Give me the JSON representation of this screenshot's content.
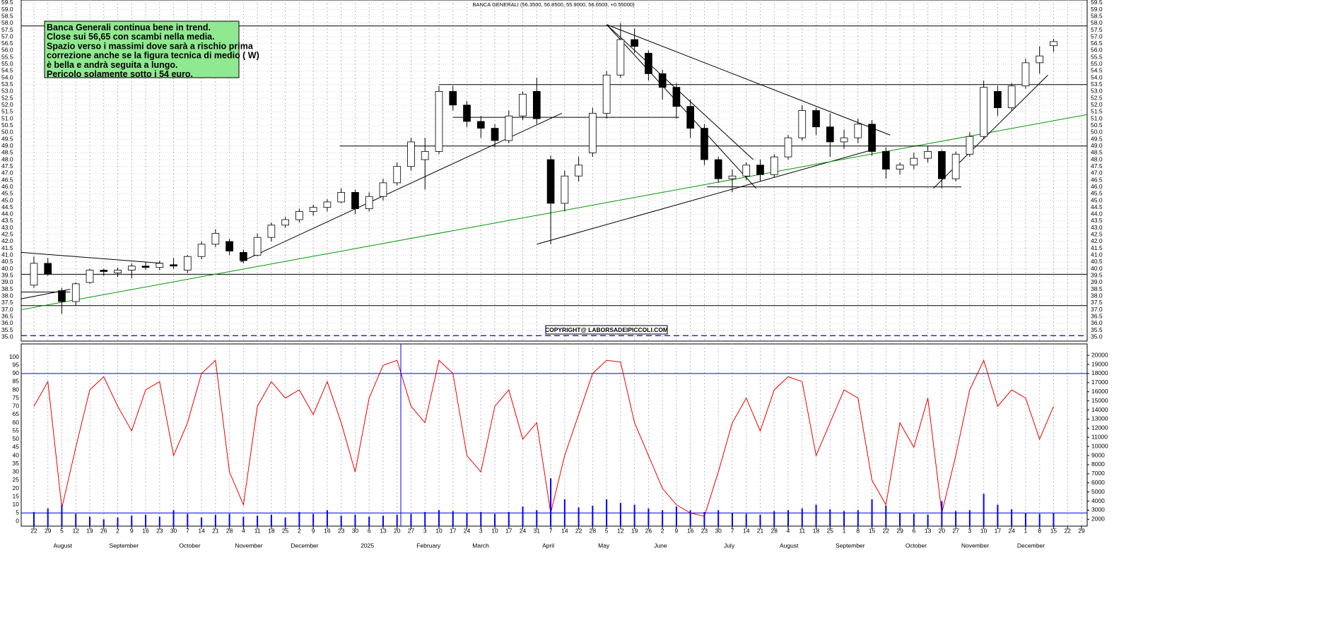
{
  "chart_data": [
    {
      "type": "candlestick",
      "title": "BANCA GENERALI (56.3500, 56.8500, 55.9000, 56.6500, +0.55000)",
      "annotation": [
        "Banca Generali continua bene in trend.",
        "Close sui 56,65 con scambi nella media.",
        "Spazio verso i massimi dove sarà a rischio prima",
        "correzione anche se la figura tecnica di medio ( W)",
        "è bella e andrà seguita a lungo.",
        "Pericolo solamente sotto i 54 euro."
      ],
      "copyright": "COPYRIGHT@ LABORSADEIPICCOLI.COM",
      "categories": [
        "22",
        "29",
        "5",
        "12",
        "19",
        "26",
        "2",
        "9",
        "16",
        "23",
        "30",
        "7",
        "14",
        "21",
        "28",
        "4",
        "11",
        "18",
        "25",
        "2",
        "9",
        "16",
        "23",
        "30",
        "6",
        "13",
        "20",
        "27",
        "3",
        "10",
        "17",
        "24",
        "3",
        "10",
        "17",
        "24",
        "31",
        "7",
        "14",
        "22",
        "28",
        "5",
        "12",
        "19",
        "26",
        "2",
        "9",
        "16",
        "23",
        "30",
        "7",
        "14",
        "21",
        "28",
        "4",
        "11",
        "18",
        "25",
        "1",
        "8",
        "15",
        "22",
        "29",
        "6",
        "13",
        "20",
        "27",
        "3",
        "10",
        "17",
        "24",
        "1",
        "8",
        "15",
        "22",
        "29"
      ],
      "month_labels": [
        null,
        null,
        "August",
        null,
        null,
        null,
        "September",
        null,
        null,
        null,
        null,
        "October",
        null,
        null,
        null,
        "November",
        null,
        null,
        null,
        "December",
        null,
        null,
        null,
        null,
        "2025",
        null,
        null,
        null,
        "February",
        null,
        null,
        null,
        "March",
        null,
        null,
        null,
        null,
        "April",
        null,
        null,
        null,
        "May",
        null,
        null,
        null,
        "June",
        null,
        null,
        null,
        null,
        "July",
        null,
        null,
        null,
        "August",
        null,
        null,
        null,
        "September",
        null,
        null,
        null,
        null,
        "October",
        null,
        null,
        null,
        "November",
        null,
        null,
        null,
        "December",
        null,
        null,
        null,
        null
      ],
      "open": [
        38.8,
        40.4,
        38.4,
        37.6,
        39.0,
        39.9,
        39.7,
        39.9,
        40.2,
        40.1,
        40.3,
        39.9,
        40.9,
        41.8,
        42.0,
        41.2,
        41.0,
        42.3,
        43.2,
        43.6,
        44.2,
        44.5,
        44.9,
        45.6,
        44.4,
        45.3,
        46.3,
        47.5,
        48.0,
        48.6,
        53.0,
        52.0,
        50.8,
        50.3,
        49.4,
        51.2,
        53.0,
        48.0,
        44.8,
        46.8,
        48.5,
        51.4,
        54.2,
        56.8,
        55.8,
        54.3,
        53.3,
        51.9,
        50.3,
        48.0,
        46.6,
        46.8,
        47.6,
        46.9,
        48.2,
        49.6,
        51.6,
        50.4,
        49.3,
        49.6,
        50.6,
        48.6,
        47.3,
        47.6,
        48.1,
        48.6,
        46.6,
        48.4,
        49.7,
        53.0,
        51.8,
        53.4,
        55.1,
        56.35,
        null,
        null
      ],
      "high": [
        40.9,
        40.8,
        38.6,
        39.0,
        40.0,
        40.0,
        40.1,
        40.4,
        40.5,
        40.6,
        40.8,
        41.0,
        42.0,
        42.9,
        42.2,
        41.4,
        42.6,
        43.4,
        43.8,
        44.4,
        44.7,
        45.1,
        45.9,
        45.8,
        45.6,
        46.6,
        47.8,
        49.6,
        49.6,
        53.4,
        53.4,
        52.3,
        51.2,
        50.6,
        51.6,
        53.0,
        54.0,
        48.3,
        47.2,
        48.2,
        51.8,
        54.5,
        58.0,
        57.6,
        56.0,
        54.6,
        53.6,
        52.4,
        50.6,
        48.2,
        47.3,
        47.8,
        48.0,
        48.4,
        49.8,
        52.0,
        51.8,
        51.4,
        50.2,
        51.0,
        50.9,
        48.9,
        47.8,
        48.5,
        49.0,
        48.7,
        48.6,
        50.0,
        53.8,
        53.4,
        53.6,
        55.4,
        56.3,
        56.85,
        null,
        null
      ],
      "low": [
        38.6,
        39.5,
        36.7,
        37.3,
        38.9,
        39.5,
        39.4,
        39.3,
        39.9,
        39.9,
        40.0,
        39.7,
        40.7,
        41.6,
        41.0,
        40.4,
        40.9,
        42.0,
        43.0,
        43.4,
        43.9,
        44.2,
        44.8,
        44.0,
        44.2,
        45.0,
        46.1,
        47.2,
        45.8,
        48.4,
        51.6,
        50.4,
        49.6,
        48.9,
        49.2,
        50.9,
        50.6,
        41.8,
        44.2,
        46.4,
        48.2,
        51.0,
        54.0,
        55.8,
        53.8,
        52.4,
        51.0,
        49.6,
        47.6,
        46.3,
        45.6,
        46.5,
        46.4,
        46.7,
        48.0,
        49.4,
        49.8,
        48.2,
        48.8,
        49.2,
        48.3,
        46.6,
        46.9,
        47.3,
        47.8,
        45.9,
        46.4,
        48.2,
        49.5,
        51.2,
        51.6,
        53.2,
        54.3,
        55.9,
        null,
        null
      ],
      "close": [
        40.4,
        39.6,
        37.6,
        38.9,
        39.9,
        39.8,
        39.9,
        40.2,
        40.1,
        40.4,
        40.2,
        40.9,
        41.8,
        42.6,
        41.3,
        40.6,
        42.3,
        43.2,
        43.6,
        44.2,
        44.5,
        44.9,
        45.6,
        44.4,
        45.3,
        46.3,
        47.5,
        49.3,
        48.6,
        53.0,
        52.0,
        50.8,
        50.3,
        49.4,
        51.2,
        52.8,
        51.0,
        44.8,
        46.8,
        47.6,
        51.4,
        54.2,
        56.8,
        56.3,
        54.3,
        53.3,
        51.9,
        50.3,
        48.0,
        46.6,
        46.8,
        47.6,
        46.9,
        48.2,
        49.6,
        51.6,
        50.4,
        49.3,
        49.6,
        50.6,
        48.6,
        47.3,
        47.6,
        48.1,
        48.6,
        46.6,
        48.4,
        49.7,
        53.3,
        51.8,
        53.4,
        55.1,
        55.6,
        56.65,
        null,
        null
      ],
      "up_color": "#ffffff",
      "down_color": "#000000",
      "wick_color": "#000000",
      "ylim": [
        34.7,
        59.7
      ],
      "yticks": [
        {
          "value": 35,
          "label": "35.0"
        },
        35.5,
        {
          "value": 36,
          "label": "36.0"
        },
        36.5,
        {
          "value": 37,
          "label": "37.0"
        },
        37.5,
        {
          "value": 38,
          "label": "38.0"
        },
        38.5,
        {
          "value": 39,
          "label": "39.0"
        },
        39.5,
        {
          "value": 40,
          "label": "40.0"
        },
        40.5,
        {
          "value": 41,
          "label": "41.0"
        },
        41.5,
        {
          "value": 42,
          "label": "42.0"
        },
        42.5,
        {
          "value": 43,
          "label": "43.0"
        },
        43.5,
        {
          "value": 44,
          "label": "44.0"
        },
        44.5,
        {
          "value": 45,
          "label": "45.0"
        },
        45.5,
        {
          "value": 46,
          "label": "46.0"
        },
        46.5,
        {
          "value": 47,
          "label": "47.0"
        },
        47.5,
        {
          "value": 48,
          "label": "48.0"
        },
        48.5,
        {
          "value": 49,
          "label": "49.0"
        },
        49.5,
        {
          "value": 50,
          "label": "50.0"
        },
        50.5,
        {
          "value": 51,
          "label": "51.0"
        },
        51.5,
        {
          "value": 52,
          "label": "52.0"
        },
        52.5,
        {
          "value": 53,
          "label": "53.0"
        },
        53.5,
        {
          "value": 54,
          "label": "54.0"
        },
        54.5,
        {
          "value": 55,
          "label": "55.0"
        },
        55.5,
        {
          "value": 56,
          "label": "56.0"
        },
        56.5,
        {
          "value": 57,
          "label": "57.0"
        },
        57.5,
        {
          "value": 58,
          "label": "58.0"
        },
        58.5,
        {
          "value": 59,
          "label": "59.0"
        },
        59.5
      ],
      "hlines": [
        57.8,
        39.6,
        37.3
      ],
      "hline_color": "#000000",
      "dashed_hline": 35.1,
      "dashed_hline_color": "#0000ff",
      "segments": [
        {
          "start": [
            14.8,
            40.5
          ],
          "end": [
            37.8,
            51.4
          ],
          "color": "#000000"
        },
        {
          "start": [
            36,
            41.8
          ],
          "end": [
            60.3,
            48.8
          ],
          "color": "#000000"
        },
        {
          "start": [
            -0.9,
            37.0
          ],
          "end": [
            75.5,
            51.3
          ],
          "color": "#009900"
        },
        {
          "start": [
            41,
            57.9
          ],
          "end": [
            61.3,
            49.8
          ],
          "color": "#000000"
        },
        {
          "start": [
            41,
            57.9
          ],
          "end": [
            51.7,
            45.9
          ],
          "color": "#000000"
        },
        {
          "start": [
            41,
            57.9
          ],
          "end": [
            51.5,
            48.0
          ],
          "color": "#000000"
        },
        {
          "start": [
            64.4,
            45.9
          ],
          "end": [
            72.6,
            54.2
          ],
          "color": "#000000"
        },
        {
          "start": [
            -0.9,
            41.2
          ],
          "end": [
            9.2,
            40.4
          ],
          "color": "#000000"
        },
        {
          "start": [
            -0.9,
            37.8
          ],
          "end": [
            2.6,
            38.5
          ],
          "color": "#000000"
        },
        {
          "start": [
            30,
            51.1
          ],
          "end": [
            46.2,
            51.1
          ],
          "color": "#000000"
        },
        {
          "start": [
            21.9,
            49.0
          ],
          "end": [
            75.5,
            49.0
          ],
          "color": "#000000"
        },
        {
          "start": [
            48.2,
            46.0
          ],
          "end": [
            66.4,
            46.0
          ],
          "color": "#000000"
        },
        {
          "start": [
            29,
            53.5
          ],
          "end": [
            75.5,
            53.5
          ],
          "color": "#000000"
        },
        {
          "start": [
            -0.9,
            38.3
          ],
          "end": [
            2.6,
            38.3
          ],
          "color": "#000000"
        }
      ]
    },
    {
      "type": "line",
      "series": [
        {
          "color": "#ee0000",
          "values": [
            70,
            85,
            8,
            45,
            80,
            88,
            70,
            55,
            80,
            85,
            40,
            60,
            90,
            98,
            30,
            10,
            70,
            85,
            75,
            80,
            65,
            85,
            60,
            30,
            75,
            95,
            98,
            70,
            60,
            98,
            90,
            40,
            30,
            70,
            80,
            50,
            60,
            5,
            40,
            65,
            90,
            98,
            97,
            60,
            40,
            20,
            10,
            5,
            3,
            30,
            60,
            75,
            55,
            80,
            88,
            85,
            40,
            60,
            80,
            75,
            25,
            10,
            60,
            45,
            75,
            5,
            40,
            80,
            98,
            70,
            80,
            75,
            50,
            70,
            null,
            null
          ]
        },
        {
          "type": "bar",
          "axis": "y2",
          "color": "#0000ff",
          "values": [
            2800,
            3200,
            3600,
            2600,
            2300,
            2000,
            2200,
            2400,
            2500,
            2300,
            3000,
            2600,
            2200,
            2500,
            2600,
            2300,
            2400,
            2500,
            2200,
            2800,
            2600,
            3000,
            2400,
            2500,
            2300,
            2400,
            2500,
            2600,
            2800,
            3000,
            2900,
            2700,
            2800,
            2600,
            2800,
            3400,
            3000,
            6500,
            4200,
            3300,
            3500,
            4200,
            3800,
            3600,
            3200,
            3000,
            3400,
            3000,
            2800,
            3000,
            2700,
            2600,
            2500,
            2900,
            3000,
            3200,
            3600,
            3100,
            2900,
            3000,
            4200,
            3500,
            2700,
            2600,
            2500,
            4000,
            2900,
            3000,
            4800,
            3600,
            3100,
            2700,
            2600,
            2700,
            null,
            null
          ]
        }
      ],
      "ylim": [
        -3,
        108
      ],
      "yticks": [
        0,
        5,
        10,
        15,
        20,
        25,
        30,
        35,
        40,
        45,
        50,
        55,
        60,
        65,
        70,
        75,
        80,
        85,
        90,
        95,
        100
      ],
      "y2lim": [
        1250,
        21250
      ],
      "y2ticks": [
        2000,
        3000,
        4000,
        5000,
        6000,
        7000,
        8000,
        9000,
        10000,
        11000,
        12000,
        13000,
        14000,
        15000,
        16000,
        17000,
        18000,
        19000,
        20000
      ],
      "hlines": [
        90,
        5
      ],
      "hline_color": "#0000ff"
    }
  ]
}
